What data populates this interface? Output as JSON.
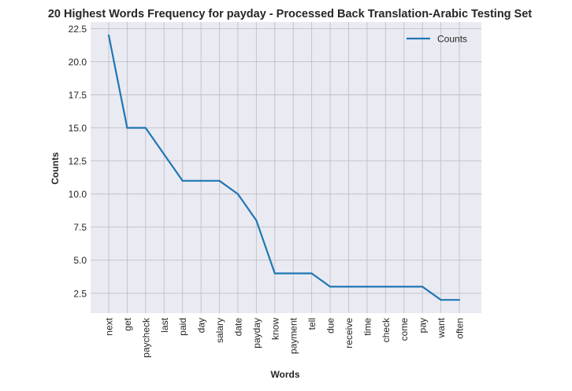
{
  "chart_data": {
    "type": "line",
    "title": "20 Highest Words Frequency for payday - Processed Back Translation-Arabic Testing Set",
    "xlabel": "Words",
    "ylabel": "Counts",
    "categories": [
      "next",
      "get",
      "paycheck",
      "last",
      "paid",
      "day",
      "salary",
      "date",
      "payday",
      "know",
      "payment",
      "tell",
      "due",
      "receive",
      "time",
      "check",
      "come",
      "pay",
      "want",
      "often"
    ],
    "series": [
      {
        "name": "Counts",
        "values": [
          22,
          15,
          15,
          13,
          11,
          11,
          11,
          10,
          8,
          4,
          4,
          4,
          3,
          3,
          3,
          3,
          3,
          3,
          2,
          2
        ]
      }
    ],
    "yticks": [
      "2.5",
      "5.0",
      "7.5",
      "10.0",
      "12.5",
      "15.0",
      "17.5",
      "20.0",
      "22.5"
    ],
    "ylim": [
      1.0,
      23.0
    ],
    "grid": true,
    "legend_position": "top-right",
    "colors": {
      "line": "#1f77b4",
      "plot_bg": "#eaeaf2",
      "grid": "#c0c0c8"
    }
  }
}
